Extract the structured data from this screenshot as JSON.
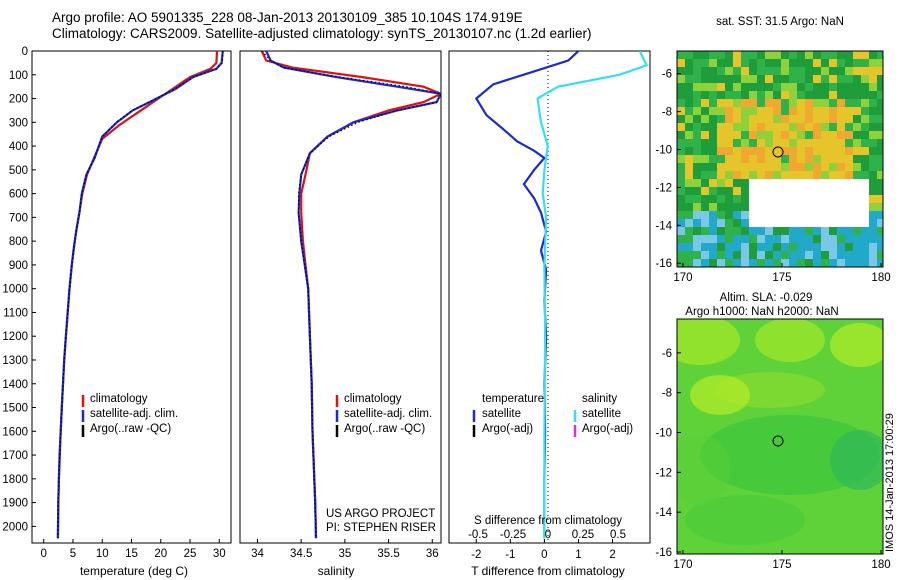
{
  "header": {
    "line1": "Argo profile: AO 5901335_228 08-Jan-2013 20130109_385 10.104S 174.919E",
    "line2": "Climatology: CARS2009. Satellite-adjusted climatology: synTS_20130107.nc (1.2d earlier)"
  },
  "colors": {
    "climatology": "#dd1111",
    "satellite": "#1a2ad0",
    "argo": "#000000",
    "satellite_cyan": "#33e0ee",
    "argo_adj": "#e030c8",
    "sst_box_bg": "#ffffff"
  },
  "panels": {
    "temperature": {
      "xlabel": "temperature (deg C)",
      "legend": [
        "climatology",
        "satellite-adj. clim.",
        "Argo(..raw -QC)"
      ]
    },
    "salinity": {
      "xlabel": "salinity",
      "legend": [
        "climatology",
        "satellite-adj. clim.",
        "Argo(..raw -QC)"
      ],
      "credit1": "US ARGO PROJECT",
      "credit2": "PI: STEPHEN RISER"
    },
    "difference": {
      "top_xlabel": "S difference from climatology",
      "xlabel": "T difference from climatology",
      "legend_head_left": "temperature",
      "legend_head_right": "salinity",
      "legend_left": [
        "satellite",
        "Argo(-adj)"
      ],
      "legend_right": [
        "satellite",
        "Argo(-adj)"
      ]
    },
    "sst_map": {
      "title": "sat. SST: 31.5 Argo: NaN"
    },
    "sla_map": {
      "title1": "Altim. SLA: -0.029",
      "title2": "Argo h1000: NaN h2000: NaN"
    },
    "stamp": "IMOS 14-Jan-2013 17:00:29"
  },
  "chart_data": [
    {
      "type": "line",
      "name": "temperature-profile",
      "xlabel": "temperature (deg C)",
      "ylabel": "",
      "xlim": [
        -2,
        32
      ],
      "ylim": [
        2070,
        0
      ],
      "xticks": [
        0,
        5,
        10,
        15,
        20,
        25,
        30
      ],
      "yticks": [
        0,
        100,
        200,
        300,
        400,
        500,
        600,
        700,
        800,
        900,
        1000,
        1100,
        1200,
        1300,
        1400,
        1500,
        1600,
        1700,
        1800,
        1900,
        2000
      ],
      "series": [
        {
          "name": "climatology",
          "color": "#dd1111",
          "x": [
            29.6,
            29.5,
            28.5,
            25,
            22,
            19,
            16,
            13,
            10,
            8.6,
            7.4,
            6.6,
            6.1,
            5.6,
            5.2,
            4.8,
            4.4,
            4.1,
            3.8,
            3.5,
            3.3,
            3.1,
            2.9,
            2.7,
            2.6,
            2.5,
            2.4
          ],
          "y": [
            0,
            50,
            75,
            110,
            160,
            210,
            260,
            310,
            370,
            450,
            520,
            600,
            680,
            750,
            820,
            900,
            1000,
            1100,
            1200,
            1300,
            1400,
            1500,
            1600,
            1700,
            1800,
            1900,
            2050
          ]
        },
        {
          "name": "satellite-adj. clim.",
          "color": "#1a2ad0",
          "x": [
            30.6,
            30.4,
            29.5,
            25.5,
            22.5,
            18.5,
            15.2,
            12.5,
            10,
            8.7,
            7.3,
            6.5,
            6.1,
            5.6,
            5.2,
            4.8,
            4.4,
            4.1,
            3.8,
            3.5,
            3.3,
            3.1,
            2.9,
            2.75,
            2.6,
            2.5,
            2.45
          ],
          "y": [
            0,
            50,
            75,
            110,
            160,
            210,
            250,
            300,
            360,
            450,
            520,
            600,
            680,
            750,
            820,
            900,
            1000,
            1100,
            1200,
            1300,
            1400,
            1500,
            1600,
            1700,
            1800,
            1900,
            2050
          ]
        },
        {
          "name": "Argo(..raw -QC)",
          "color": "#000000",
          "x": [
            30.6,
            30.5,
            29.6,
            25.6,
            22.4,
            18.4,
            15.1,
            12.4,
            10,
            8.7,
            7.3,
            6.5,
            6.1,
            5.6,
            5.2,
            4.8,
            4.4,
            4.1,
            3.8,
            3.5,
            3.3,
            3.1,
            2.9,
            2.75,
            2.6,
            2.5,
            2.45
          ],
          "y": [
            0,
            50,
            75,
            110,
            160,
            210,
            250,
            300,
            360,
            450,
            520,
            600,
            680,
            750,
            820,
            900,
            1000,
            1100,
            1200,
            1300,
            1400,
            1500,
            1600,
            1700,
            1800,
            1900,
            2050
          ]
        }
      ]
    },
    {
      "type": "line",
      "name": "salinity-profile",
      "xlabel": "salinity",
      "xlim": [
        33.8,
        36.1
      ],
      "ylim": [
        2070,
        0
      ],
      "xticks": [
        34,
        34.5,
        35,
        35.5,
        36
      ],
      "series": [
        {
          "name": "climatology",
          "color": "#dd1111",
          "x": [
            34.05,
            34.1,
            34.4,
            35.2,
            35.9,
            36.1,
            35.9,
            35.5,
            35.1,
            34.8,
            34.6,
            34.55,
            34.5,
            34.5,
            34.52,
            34.55,
            34.58,
            34.6,
            34.62,
            34.63,
            34.64,
            34.65,
            34.66,
            34.67
          ],
          "y": [
            0,
            40,
            70,
            110,
            150,
            180,
            215,
            250,
            300,
            360,
            430,
            520,
            600,
            680,
            800,
            900,
            1000,
            1200,
            1400,
            1600,
            1700,
            1800,
            1900,
            2050
          ]
        },
        {
          "name": "satellite-adj. clim.",
          "color": "#1a2ad0",
          "x": [
            34.1,
            34.15,
            34.3,
            34.9,
            35.6,
            36.1,
            36.05,
            35.6,
            35.1,
            34.8,
            34.6,
            34.5,
            34.48,
            34.47,
            34.5,
            34.54,
            34.58,
            34.6,
            34.62,
            34.63,
            34.64,
            34.65,
            34.66,
            34.67
          ],
          "y": [
            0,
            40,
            70,
            110,
            150,
            180,
            215,
            250,
            300,
            360,
            430,
            520,
            600,
            680,
            800,
            900,
            1000,
            1200,
            1400,
            1600,
            1700,
            1800,
            1900,
            2050
          ]
        },
        {
          "name": "Argo(..raw -QC)",
          "color": "#000000",
          "x": [
            34.05,
            34.15,
            34.3,
            34.95,
            35.7,
            36.1,
            36.05,
            35.6,
            35.15,
            34.82,
            34.6,
            34.5,
            34.47,
            34.47,
            34.5,
            34.54,
            34.58,
            34.6,
            34.62,
            34.63,
            34.64,
            34.65,
            34.66,
            34.67
          ],
          "y": [
            0,
            40,
            70,
            110,
            150,
            180,
            215,
            250,
            300,
            360,
            430,
            520,
            600,
            680,
            800,
            900,
            1000,
            1200,
            1400,
            1600,
            1700,
            1800,
            1900,
            2050
          ]
        }
      ]
    },
    {
      "type": "line",
      "name": "difference-profile",
      "xlabel": "T difference from climatology",
      "xlim": [
        -2.8,
        3.1
      ],
      "ylim": [
        2070,
        0
      ],
      "xticks": [
        -2,
        -1,
        0,
        1,
        2
      ],
      "top_axis": {
        "label": "S difference from climatology",
        "ticks": [
          "-0.5",
          "-0.25",
          "0",
          "0.25",
          "0.5"
        ]
      },
      "series": [
        {
          "name": "temperature satellite",
          "color": "#1a2ad0",
          "x": [
            1.0,
            0.7,
            -0.4,
            -1.5,
            -2.0,
            -1.7,
            -1.2,
            -0.8,
            -0.3,
            0.0,
            -0.3,
            -0.6,
            -0.3,
            -0.1,
            0.05,
            -0.1,
            0.05,
            0.0,
            0.05,
            0.0,
            0.02,
            0.0,
            0.0,
            0.0
          ],
          "y": [
            0,
            40,
            90,
            140,
            200,
            270,
            330,
            380,
            420,
            450,
            500,
            560,
            620,
            680,
            760,
            840,
            920,
            1050,
            1200,
            1400,
            1600,
            1800,
            1950,
            2050
          ]
        },
        {
          "name": "salinity satellite",
          "color": "#33e0ee",
          "x": [
            2.8,
            3.0,
            2.2,
            0.4,
            -0.2,
            -0.1,
            0.1,
            0.0,
            -0.05,
            0.05,
            0.0,
            0.02,
            0.0,
            0.0
          ],
          "y": [
            0,
            60,
            100,
            150,
            200,
            300,
            400,
            500,
            600,
            700,
            900,
            1200,
            1600,
            2050
          ]
        }
      ]
    }
  ]
}
